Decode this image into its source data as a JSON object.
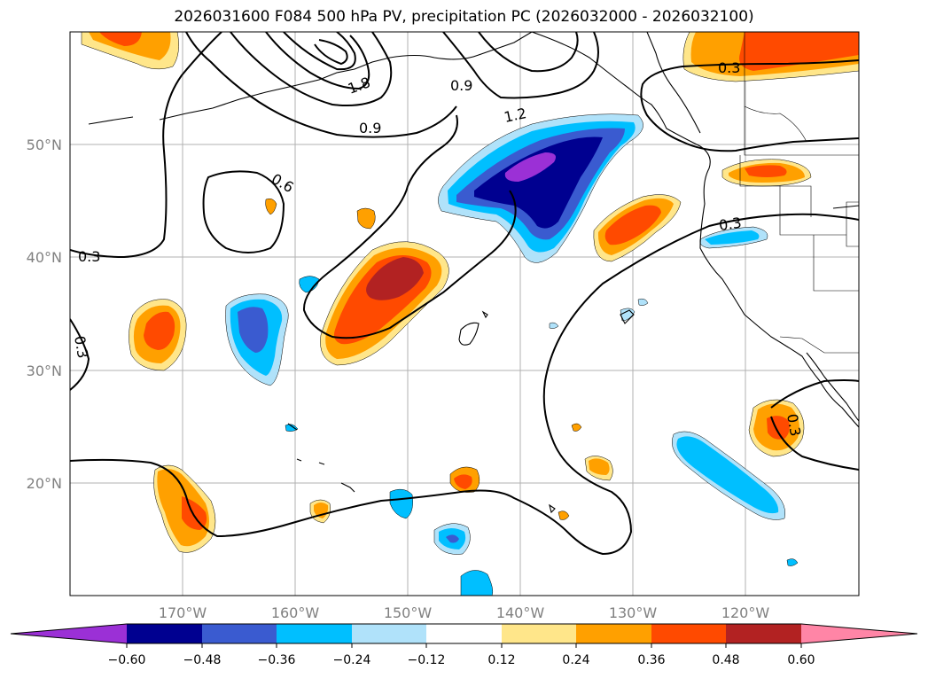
{
  "title": "2026031600 F084 500 hPa PV, precipitation PC (2026032000 - 2026032100)",
  "map": {
    "lon_labels": [
      "170°W",
      "160°W",
      "150°W",
      "140°W",
      "130°W",
      "120°W"
    ],
    "lat_labels": [
      "50°N",
      "40°N",
      "30°N",
      "20°N"
    ],
    "contour_labels": [
      "1.8",
      "0.9",
      "0.9",
      "1.2",
      "0.3",
      "0.6",
      "0.3",
      "0.3",
      "0.3",
      "0.3"
    ]
  },
  "colorbar": {
    "ticks": [
      "−0.60",
      "−0.48",
      "−0.36",
      "−0.24",
      "−0.12",
      "0.12",
      "0.24",
      "0.36",
      "0.48",
      "0.60"
    ],
    "colors": [
      "#9b30d6",
      "#000090",
      "#3a5bd0",
      "#00bfff",
      "#b0e2fa",
      "#ffffff",
      "#ffe68a",
      "#ffa000",
      "#ff4a00",
      "#b22222",
      "#ff85a6"
    ]
  }
}
